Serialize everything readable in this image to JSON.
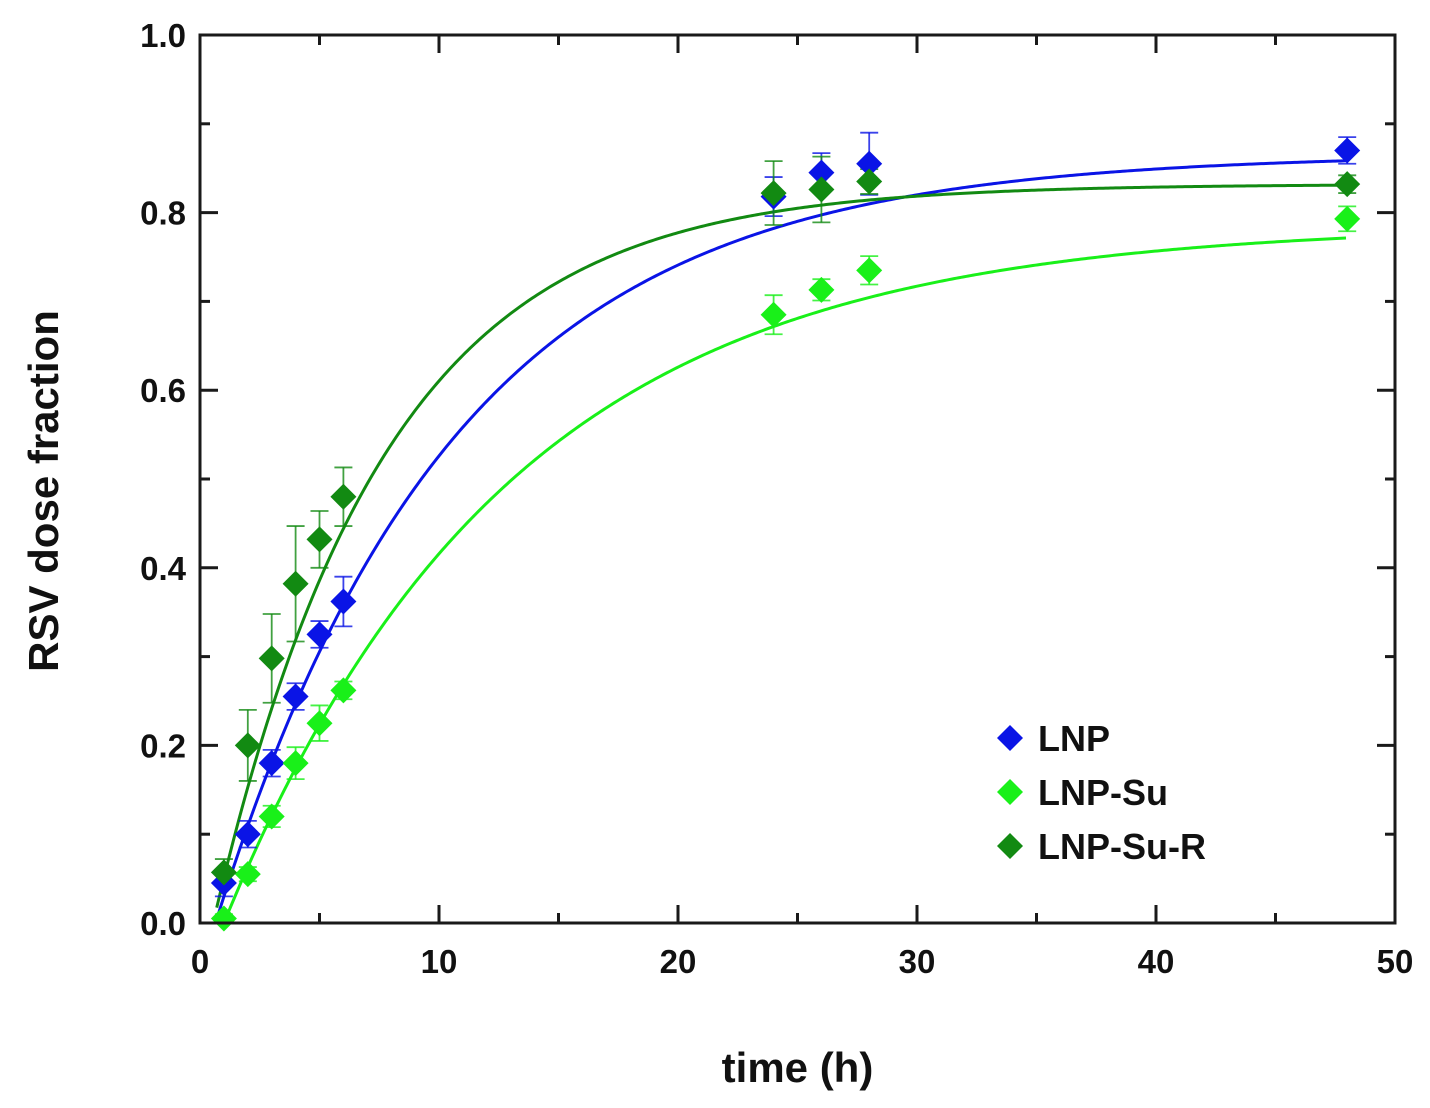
{
  "chart_data": {
    "type": "scatter",
    "title": "",
    "xlabel": "time (h)",
    "ylabel": "RSV dose fraction",
    "xlim": [
      0,
      50
    ],
    "ylim": [
      0,
      1.0
    ],
    "x_ticks": [
      0,
      10,
      20,
      30,
      40,
      50
    ],
    "y_ticks": [
      0.0,
      0.2,
      0.4,
      0.6,
      0.8,
      1.0
    ],
    "x_tick_labels": [
      "0",
      "10",
      "20",
      "30",
      "40",
      "50"
    ],
    "y_tick_labels": [
      "0.0",
      "0.2",
      "0.4",
      "0.6",
      "0.8",
      "1.0"
    ],
    "grid": false,
    "legend_position": "bottom-right",
    "series": [
      {
        "name": "LNP",
        "color": "#0a14e6",
        "marker": "diamond",
        "x": [
          1,
          2,
          3,
          4,
          5,
          6,
          24,
          26,
          28,
          48
        ],
        "y": [
          0.045,
          0.1,
          0.18,
          0.255,
          0.325,
          0.362,
          0.818,
          0.845,
          0.855,
          0.87
        ],
        "err": [
          0.015,
          0.015,
          0.015,
          0.015,
          0.015,
          0.028,
          0.022,
          0.022,
          0.035,
          0.015
        ],
        "fit": {
          "model": "A*(1-exp(-k*(t-t0)))",
          "A": 0.866,
          "k": 0.1,
          "t0": 0.65
        }
      },
      {
        "name": "LNP-Su",
        "color": "#19f019",
        "marker": "diamond",
        "x": [
          1,
          2,
          3,
          4,
          5,
          6,
          24,
          26,
          28,
          48
        ],
        "y": [
          0.005,
          0.055,
          0.12,
          0.18,
          0.225,
          0.262,
          0.685,
          0.713,
          0.735,
          0.793
        ],
        "err": [
          0.005,
          0.008,
          0.012,
          0.018,
          0.02,
          0.01,
          0.022,
          0.012,
          0.016,
          0.014
        ],
        "fit": {
          "model": "A*(1-exp(-k*(t-t0)))",
          "A": 0.787,
          "k": 0.0835,
          "t0": 1.0
        }
      },
      {
        "name": "LNP-Su-R",
        "color": "#128a12",
        "marker": "diamond",
        "x": [
          1,
          2,
          3,
          4,
          5,
          6,
          24,
          26,
          28,
          48
        ],
        "y": [
          0.057,
          0.2,
          0.298,
          0.382,
          0.432,
          0.48,
          0.822,
          0.826,
          0.835,
          0.832
        ],
        "err": [
          0.015,
          0.04,
          0.05,
          0.065,
          0.032,
          0.033,
          0.036,
          0.037,
          0.014,
          0.01
        ],
        "fit": {
          "model": "A*(1-exp(-k*(t-t0)))",
          "A": 0.832,
          "k": 0.14,
          "t0": 0.55
        }
      }
    ]
  }
}
